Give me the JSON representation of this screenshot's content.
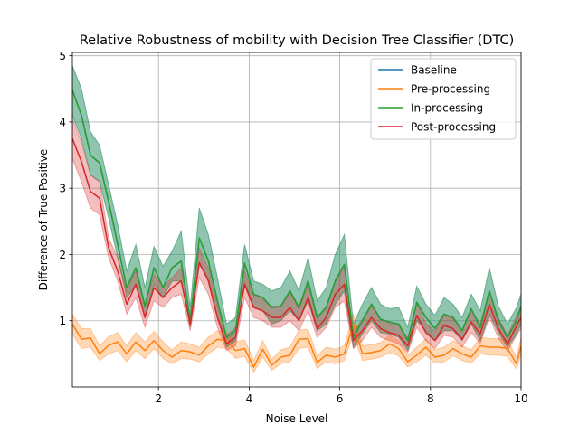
{
  "chart_data": {
    "type": "line",
    "title": "Relative Robustness of mobility with Decision Tree Classifier (DTC)",
    "xlabel": "Noise Level",
    "ylabel": "Difference of True Positive",
    "xlim": [
      0.1,
      10.0
    ],
    "ylim": [
      0.0,
      5.05
    ],
    "xticks": [
      2,
      4,
      6,
      8,
      10
    ],
    "yticks": [
      1,
      2,
      3,
      4,
      5
    ],
    "grid": true,
    "legend_position": "upper right",
    "x": [
      0.1,
      0.3,
      0.5,
      0.7,
      0.9,
      1.1,
      1.3,
      1.5,
      1.7,
      1.9,
      2.1,
      2.3,
      2.5,
      2.7,
      2.9,
      3.1,
      3.3,
      3.5,
      3.7,
      3.9,
      4.1,
      4.3,
      4.5,
      4.7,
      4.9,
      5.1,
      5.3,
      5.5,
      5.7,
      5.9,
      6.1,
      6.3,
      6.5,
      6.7,
      6.9,
      7.1,
      7.3,
      7.5,
      7.7,
      7.9,
      8.1,
      8.3,
      8.5,
      8.7,
      8.9,
      9.1,
      9.3,
      9.5,
      9.7,
      9.9,
      10.0
    ],
    "series": [
      {
        "name": "Baseline",
        "color": "#1f77b4",
        "values": [
          4.48,
          4.1,
          3.5,
          3.38,
          2.8,
          2.15,
          1.5,
          1.8,
          1.22,
          1.8,
          1.5,
          1.8,
          1.9,
          1.0,
          2.25,
          1.9,
          1.3,
          0.75,
          0.85,
          1.87,
          1.4,
          1.35,
          1.2,
          1.22,
          1.45,
          1.2,
          1.6,
          1.05,
          1.2,
          1.6,
          1.85,
          0.75,
          1.0,
          1.25,
          1.02,
          0.98,
          0.95,
          0.7,
          1.28,
          1.05,
          0.88,
          1.1,
          1.05,
          0.85,
          1.18,
          0.9,
          1.45,
          1.0,
          0.75,
          1.0,
          1.22
        ],
        "lower": [
          4.1,
          3.75,
          3.2,
          3.1,
          2.55,
          1.95,
          1.35,
          1.55,
          1.05,
          1.55,
          1.35,
          1.6,
          1.6,
          0.9,
          1.85,
          1.65,
          1.05,
          0.6,
          0.7,
          1.6,
          1.2,
          1.15,
          0.95,
          1.0,
          1.15,
          1.0,
          1.3,
          0.85,
          0.95,
          1.25,
          1.45,
          0.6,
          0.8,
          1.0,
          0.82,
          0.8,
          0.75,
          0.55,
          1.0,
          0.85,
          0.7,
          0.85,
          0.85,
          0.7,
          0.95,
          0.7,
          1.1,
          0.82,
          0.6,
          0.8,
          0.95
        ],
        "upper": [
          4.85,
          4.5,
          3.85,
          3.65,
          3.05,
          2.45,
          1.75,
          2.15,
          1.5,
          2.12,
          1.82,
          2.05,
          2.35,
          1.2,
          2.7,
          2.3,
          1.65,
          0.95,
          1.05,
          2.15,
          1.6,
          1.55,
          1.45,
          1.5,
          1.75,
          1.45,
          1.95,
          1.3,
          1.5,
          2.0,
          2.3,
          0.95,
          1.25,
          1.5,
          1.25,
          1.18,
          1.2,
          0.9,
          1.52,
          1.25,
          1.08,
          1.35,
          1.25,
          1.05,
          1.4,
          1.15,
          1.8,
          1.22,
          0.95,
          1.2,
          1.4
        ]
      },
      {
        "name": "Pre-processing",
        "color": "#ff7f0e",
        "values": [
          0.95,
          0.72,
          0.74,
          0.5,
          0.63,
          0.68,
          0.5,
          0.68,
          0.55,
          0.7,
          0.55,
          0.45,
          0.55,
          0.53,
          0.48,
          0.62,
          0.72,
          0.7,
          0.55,
          0.58,
          0.3,
          0.57,
          0.33,
          0.45,
          0.48,
          0.72,
          0.73,
          0.37,
          0.48,
          0.45,
          0.5,
          0.95,
          0.5,
          0.52,
          0.55,
          0.65,
          0.58,
          0.38,
          0.48,
          0.6,
          0.45,
          0.48,
          0.58,
          0.5,
          0.45,
          0.62,
          0.6,
          0.6,
          0.58,
          0.35,
          0.62
        ],
        "lower": [
          0.8,
          0.58,
          0.6,
          0.4,
          0.5,
          0.55,
          0.38,
          0.55,
          0.43,
          0.58,
          0.43,
          0.35,
          0.43,
          0.42,
          0.38,
          0.5,
          0.6,
          0.58,
          0.43,
          0.46,
          0.22,
          0.45,
          0.25,
          0.35,
          0.38,
          0.58,
          0.6,
          0.28,
          0.38,
          0.35,
          0.4,
          0.8,
          0.4,
          0.42,
          0.45,
          0.52,
          0.47,
          0.3,
          0.38,
          0.48,
          0.36,
          0.38,
          0.47,
          0.4,
          0.36,
          0.5,
          0.48,
          0.48,
          0.46,
          0.27,
          0.5
        ],
        "upper": [
          1.1,
          0.88,
          0.88,
          0.62,
          0.76,
          0.82,
          0.62,
          0.82,
          0.68,
          0.84,
          0.68,
          0.56,
          0.68,
          0.65,
          0.6,
          0.75,
          0.85,
          0.83,
          0.68,
          0.71,
          0.4,
          0.7,
          0.42,
          0.56,
          0.6,
          0.86,
          0.87,
          0.47,
          0.6,
          0.57,
          0.62,
          1.1,
          0.62,
          0.64,
          0.67,
          0.78,
          0.7,
          0.48,
          0.6,
          0.73,
          0.56,
          0.6,
          0.7,
          0.62,
          0.56,
          0.75,
          0.73,
          0.73,
          0.71,
          0.45,
          0.75
        ]
      },
      {
        "name": "In-processing",
        "color": "#2ca02c",
        "values": [
          4.48,
          4.1,
          3.5,
          3.38,
          2.8,
          2.15,
          1.5,
          1.8,
          1.22,
          1.8,
          1.5,
          1.8,
          1.9,
          1.0,
          2.25,
          1.9,
          1.3,
          0.75,
          0.85,
          1.87,
          1.4,
          1.35,
          1.2,
          1.22,
          1.45,
          1.2,
          1.6,
          1.05,
          1.2,
          1.6,
          1.85,
          0.75,
          1.0,
          1.25,
          1.02,
          0.98,
          0.95,
          0.7,
          1.28,
          1.05,
          0.88,
          1.1,
          1.05,
          0.85,
          1.18,
          0.9,
          1.45,
          1.0,
          0.75,
          1.0,
          1.22
        ],
        "lower": [
          4.1,
          3.75,
          3.2,
          3.1,
          2.55,
          1.95,
          1.35,
          1.55,
          1.05,
          1.55,
          1.35,
          1.6,
          1.6,
          0.9,
          1.85,
          1.65,
          1.05,
          0.6,
          0.7,
          1.6,
          1.2,
          1.15,
          0.95,
          1.0,
          1.15,
          1.0,
          1.3,
          0.85,
          0.95,
          1.25,
          1.45,
          0.6,
          0.8,
          1.0,
          0.82,
          0.8,
          0.75,
          0.55,
          1.0,
          0.85,
          0.7,
          0.85,
          0.85,
          0.7,
          0.95,
          0.7,
          1.1,
          0.82,
          0.6,
          0.8,
          0.95
        ],
        "upper": [
          4.85,
          4.5,
          3.85,
          3.65,
          3.05,
          2.45,
          1.75,
          2.15,
          1.5,
          2.12,
          1.82,
          2.05,
          2.35,
          1.2,
          2.7,
          2.3,
          1.65,
          0.95,
          1.05,
          2.15,
          1.6,
          1.55,
          1.45,
          1.5,
          1.75,
          1.45,
          1.95,
          1.3,
          1.5,
          2.0,
          2.3,
          0.95,
          1.25,
          1.5,
          1.25,
          1.18,
          1.2,
          0.9,
          1.52,
          1.25,
          1.08,
          1.35,
          1.25,
          1.05,
          1.4,
          1.15,
          1.8,
          1.22,
          0.95,
          1.2,
          1.4
        ]
      },
      {
        "name": "Post-processing",
        "color": "#d62728",
        "values": [
          3.75,
          3.4,
          2.95,
          2.85,
          2.1,
          1.75,
          1.25,
          1.55,
          1.05,
          1.5,
          1.35,
          1.5,
          1.6,
          0.95,
          1.88,
          1.6,
          1.05,
          0.65,
          0.75,
          1.55,
          1.2,
          1.15,
          1.05,
          1.05,
          1.2,
          1.0,
          1.35,
          0.88,
          1.05,
          1.4,
          1.55,
          0.7,
          0.85,
          1.05,
          0.88,
          0.82,
          0.78,
          0.62,
          1.08,
          0.82,
          0.7,
          0.93,
          0.88,
          0.72,
          0.98,
          0.8,
          1.25,
          0.88,
          0.65,
          0.92,
          1.05
        ],
        "lower": [
          3.45,
          3.1,
          2.7,
          2.6,
          1.95,
          1.6,
          1.1,
          1.35,
          0.9,
          1.3,
          1.2,
          1.35,
          1.4,
          0.85,
          1.65,
          1.4,
          0.9,
          0.55,
          0.62,
          1.35,
          1.05,
          1.0,
          0.9,
          0.9,
          1.0,
          0.85,
          1.15,
          0.75,
          0.9,
          1.2,
          1.3,
          0.58,
          0.7,
          0.9,
          0.75,
          0.7,
          0.65,
          0.52,
          0.9,
          0.7,
          0.58,
          0.78,
          0.75,
          0.6,
          0.82,
          0.66,
          1.05,
          0.74,
          0.54,
          0.78,
          0.88
        ],
        "upper": [
          4.05,
          3.7,
          3.2,
          3.1,
          2.25,
          1.95,
          1.45,
          1.75,
          1.22,
          1.7,
          1.52,
          1.65,
          1.8,
          1.08,
          2.1,
          1.8,
          1.22,
          0.78,
          0.9,
          1.75,
          1.38,
          1.32,
          1.22,
          1.22,
          1.42,
          1.17,
          1.55,
          1.03,
          1.22,
          1.6,
          1.8,
          0.84,
          1.02,
          1.22,
          1.03,
          0.96,
          0.93,
          0.74,
          1.26,
          0.96,
          0.84,
          1.08,
          1.03,
          0.86,
          1.15,
          0.95,
          1.45,
          1.04,
          0.78,
          1.07,
          1.22
        ]
      }
    ]
  }
}
